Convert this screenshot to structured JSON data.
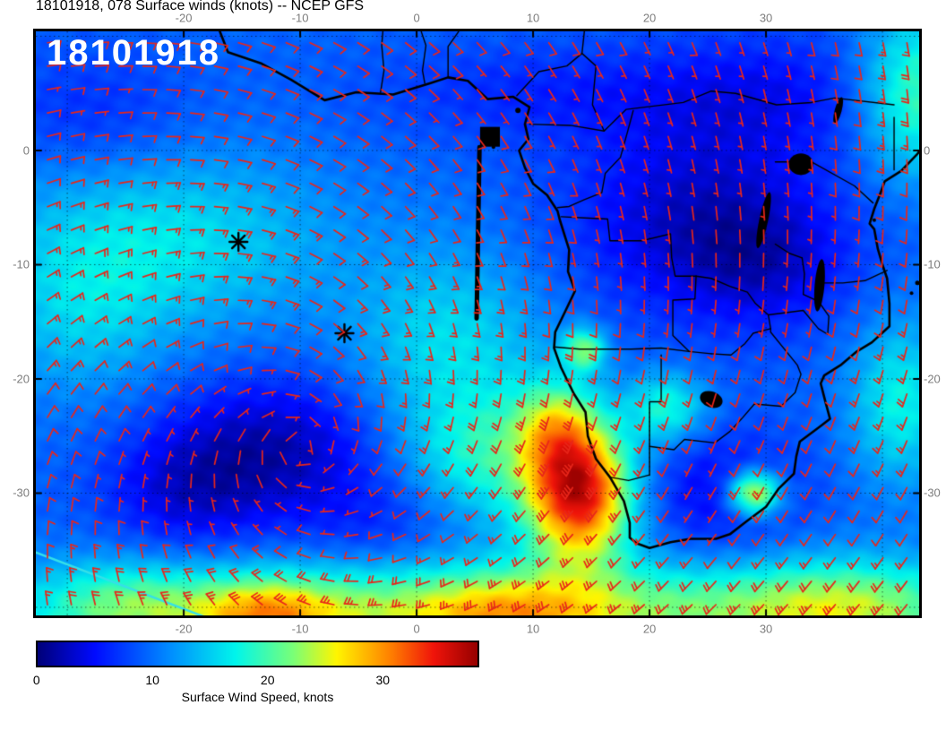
{
  "title": "18101918, 078 Surface winds (knots) -- NCEP GFS",
  "map": {
    "run_label": "18101918"
  },
  "axes": {
    "lon_ticks": [
      -20,
      -10,
      0,
      10,
      20,
      30
    ],
    "lon_labels": [
      "-20",
      "-10",
      "0",
      "10",
      "20",
      "30"
    ],
    "lat_ticks": [
      0,
      -10,
      -20,
      -30
    ],
    "lat_labels": [
      "0",
      "-10",
      "-20",
      "-30"
    ]
  },
  "chart_data": {
    "type": "heatmap",
    "description": "Surface wind speed (knots, shaded) with red wind barbs, NCEP GFS forecast hour 078, South Atlantic and southern Africa",
    "extent": {
      "lon_min": -32.7,
      "lon_max": 43.15,
      "lat_min": -40.71,
      "lat_max": 10.43
    },
    "graticule": {
      "lons": [
        -30,
        -20,
        -10,
        0,
        10,
        20,
        30,
        40
      ],
      "lats": [
        10,
        0,
        -10,
        -20,
        -30,
        -40
      ]
    },
    "frame_color": "#000000",
    "tick_label_color": "#7d7d7d",
    "colorbar": {
      "label": "Surface Wind Speed, knots",
      "ticks": [
        0,
        10,
        20,
        30
      ],
      "tick_labels": [
        "0",
        "10",
        "20",
        "30"
      ],
      "vmin": 0,
      "vmax": 38.5,
      "stops": [
        {
          "pos": 0.0,
          "rgb": [
            0,
            0,
            120
          ]
        },
        {
          "pos": 0.13,
          "rgb": [
            0,
            10,
            255
          ]
        },
        {
          "pos": 0.3,
          "rgb": [
            0,
            140,
            255
          ]
        },
        {
          "pos": 0.45,
          "rgb": [
            0,
            245,
            235
          ]
        },
        {
          "pos": 0.58,
          "rgb": [
            120,
            255,
            120
          ]
        },
        {
          "pos": 0.68,
          "rgb": [
            255,
            245,
            0
          ]
        },
        {
          "pos": 0.8,
          "rgb": [
            255,
            130,
            0
          ]
        },
        {
          "pos": 0.9,
          "rgb": [
            240,
            20,
            10
          ]
        },
        {
          "pos": 1.0,
          "rgb": [
            150,
            0,
            0
          ]
        }
      ]
    },
    "wind_field": {
      "background": 9.5,
      "noise": 0.7,
      "blob_format": "[lon,lat,sigma_lon,sigma_lat,amplitude_knots]",
      "blobs": [
        [
          -22,
          -8,
          10,
          5.5,
          7
        ],
        [
          -29,
          -15,
          5,
          5,
          4
        ],
        [
          -28,
          3,
          6,
          4,
          -3
        ],
        [
          -12,
          -26,
          6.5,
          4.5,
          -7
        ],
        [
          -20,
          -30,
          5,
          4,
          -5
        ],
        [
          -3,
          -33,
          5,
          3.5,
          -3
        ],
        [
          3,
          -17,
          6,
          6,
          6.5
        ],
        [
          6,
          -27,
          5,
          4,
          8
        ],
        [
          14,
          -30,
          3.2,
          4.2,
          26
        ],
        [
          12,
          -24,
          2.5,
          2.8,
          9
        ],
        [
          5,
          -40.5,
          26,
          3.2,
          15
        ],
        [
          -25,
          -40,
          5,
          2.8,
          6
        ],
        [
          -13,
          -40.8,
          4,
          2.2,
          10
        ],
        [
          8,
          -41,
          5,
          2.5,
          6
        ],
        [
          37,
          -40,
          7,
          3,
          9
        ],
        [
          21.5,
          -22.5,
          2.4,
          2.2,
          9
        ],
        [
          14.4,
          -17.4,
          1.3,
          1.3,
          12
        ],
        [
          29,
          -30,
          1.6,
          1.4,
          18
        ],
        [
          24,
          -6,
          8,
          6,
          -6.5
        ],
        [
          30,
          -10,
          5,
          4,
          -4
        ],
        [
          26,
          -30,
          5,
          4,
          -5
        ],
        [
          41.5,
          -22,
          3,
          5,
          8
        ],
        [
          43,
          5,
          3.5,
          5,
          11
        ],
        [
          10,
          5,
          10,
          3,
          -3
        ],
        [
          30,
          5,
          8,
          4,
          -4
        ]
      ]
    },
    "barbs": {
      "color": "#e8261a",
      "step_deg": 2.05,
      "margin_deg": 1.0,
      "circulation_center": [
        -10,
        -26
      ],
      "outflow": 0.45
    },
    "coastlines": [
      [
        [
          -16.9,
          10.43
        ],
        [
          -16.2,
          8.6
        ],
        [
          -13.3,
          7.6
        ],
        [
          -10.8,
          6.2
        ],
        [
          -7.9,
          4.4
        ],
        [
          -5.2,
          5.1
        ],
        [
          -2.0,
          4.9
        ],
        [
          1.2,
          5.9
        ],
        [
          2.7,
          6.4
        ],
        [
          4.4,
          6.1
        ],
        [
          6.1,
          4.5
        ],
        [
          8.3,
          4.7
        ],
        [
          9.7,
          3.8
        ],
        [
          9.3,
          2.3
        ],
        [
          9.6,
          1.0
        ],
        [
          8.8,
          0.0
        ],
        [
          9.3,
          -1.5
        ],
        [
          10.0,
          -2.9
        ],
        [
          11.2,
          -3.9
        ],
        [
          12.1,
          -5.3
        ],
        [
          12.3,
          -6.1
        ],
        [
          13.1,
          -8.7
        ],
        [
          13.0,
          -10.6
        ],
        [
          13.6,
          -12.3
        ],
        [
          12.8,
          -14.0
        ],
        [
          11.9,
          -15.9
        ],
        [
          11.8,
          -17.3
        ],
        [
          12.4,
          -19.0
        ],
        [
          13.5,
          -21.3
        ],
        [
          14.5,
          -22.9
        ],
        [
          14.7,
          -25.0
        ],
        [
          15.4,
          -27.0
        ],
        [
          16.6,
          -28.6
        ],
        [
          17.8,
          -30.7
        ],
        [
          18.3,
          -32.6
        ],
        [
          18.3,
          -33.9
        ],
        [
          18.9,
          -34.4
        ],
        [
          20.0,
          -34.8
        ],
        [
          21.8,
          -34.3
        ],
        [
          23.5,
          -34.0
        ],
        [
          25.7,
          -34.0
        ],
        [
          26.9,
          -33.6
        ],
        [
          28.3,
          -32.5
        ],
        [
          30.0,
          -31.2
        ],
        [
          31.1,
          -29.6
        ],
        [
          32.4,
          -28.3
        ],
        [
          32.6,
          -26.8
        ],
        [
          32.9,
          -25.5
        ],
        [
          34.6,
          -24.2
        ],
        [
          35.5,
          -23.5
        ],
        [
          35.1,
          -22.0
        ],
        [
          34.7,
          -20.4
        ],
        [
          35.0,
          -19.7
        ],
        [
          36.4,
          -18.8
        ],
        [
          37.8,
          -17.6
        ],
        [
          39.1,
          -16.8
        ],
        [
          40.6,
          -15.4
        ],
        [
          40.6,
          -13.4
        ],
        [
          40.4,
          -11.2
        ],
        [
          40.0,
          -10.0
        ],
        [
          39.6,
          -8.6
        ],
        [
          39.3,
          -6.9
        ],
        [
          38.9,
          -6.4
        ],
        [
          39.3,
          -5.1
        ],
        [
          39.8,
          -3.8
        ],
        [
          40.2,
          -2.7
        ],
        [
          41.6,
          -1.8
        ],
        [
          43.0,
          -0.3
        ],
        [
          43.4,
          0.2
        ]
      ]
    ],
    "borders": [
      [
        [
          12.4,
          -5.8
        ],
        [
          14.4,
          -5.9
        ],
        [
          16.4,
          -6.0
        ],
        [
          16.6,
          -7.9
        ],
        [
          19.4,
          -7.9
        ],
        [
          21.8,
          -7.3
        ],
        [
          21.9,
          -9.4
        ],
        [
          22.2,
          -11.0
        ],
        [
          24.0,
          -11.0
        ]
      ],
      [
        [
          24.0,
          -11.0
        ],
        [
          23.9,
          -13.0
        ],
        [
          22.0,
          -13.1
        ],
        [
          22.0,
          -16.2
        ],
        [
          23.4,
          -17.6
        ]
      ],
      [
        [
          11.8,
          -17.2
        ],
        [
          14.0,
          -17.4
        ],
        [
          18.4,
          -17.4
        ],
        [
          21.0,
          -17.3
        ],
        [
          23.4,
          -17.6
        ],
        [
          25.3,
          -17.8
        ]
      ],
      [
        [
          21.0,
          -17.9
        ],
        [
          21.0,
          -22.0
        ],
        [
          20.0,
          -22.0
        ],
        [
          20.0,
          -28.4
        ]
      ],
      [
        [
          16.6,
          -28.6
        ],
        [
          18.2,
          -28.9
        ],
        [
          20.0,
          -28.4
        ]
      ],
      [
        [
          20.0,
          -25.9
        ],
        [
          22.1,
          -26.2
        ],
        [
          23.0,
          -25.3
        ],
        [
          25.6,
          -25.6
        ],
        [
          26.9,
          -24.6
        ],
        [
          27.9,
          -23.5
        ],
        [
          29.0,
          -22.2
        ],
        [
          31.3,
          -22.4
        ]
      ],
      [
        [
          25.3,
          -17.8
        ],
        [
          27.0,
          -17.9
        ],
        [
          28.2,
          -16.9
        ],
        [
          28.9,
          -16.0
        ],
        [
          30.4,
          -15.6
        ]
      ],
      [
        [
          31.3,
          -22.4
        ],
        [
          32.5,
          -21.2
        ],
        [
          33.0,
          -19.6
        ],
        [
          32.7,
          -18.8
        ],
        [
          30.4,
          -15.9
        ],
        [
          30.4,
          -15.6
        ]
      ],
      [
        [
          30.4,
          -15.6
        ],
        [
          30.2,
          -14.4
        ],
        [
          33.2,
          -14.0
        ],
        [
          34.5,
          -15.6
        ],
        [
          35.3,
          -16.1
        ],
        [
          35.4,
          -14.5
        ],
        [
          34.5,
          -13.2
        ],
        [
          33.2,
          -12.6
        ],
        [
          33.3,
          -10.8
        ],
        [
          33.1,
          -9.4
        ]
      ],
      [
        [
          24.0,
          -11.0
        ],
        [
          25.3,
          -11.2
        ],
        [
          26.9,
          -11.9
        ],
        [
          28.4,
          -12.4
        ],
        [
          29.1,
          -13.4
        ],
        [
          30.2,
          -14.4
        ]
      ],
      [
        [
          30.8,
          -1.0
        ],
        [
          33.9,
          -1.0
        ],
        [
          37.6,
          -3.1
        ],
        [
          39.2,
          -4.6
        ]
      ],
      [
        [
          9.7,
          2.3
        ],
        [
          13.2,
          2.2
        ],
        [
          16.1,
          1.7
        ],
        [
          18.0,
          3.6
        ],
        [
          22.9,
          4.2
        ],
        [
          25.3,
          5.2
        ],
        [
          27.4,
          5.0
        ],
        [
          30.9,
          4.0
        ],
        [
          33.9,
          4.2
        ],
        [
          35.9,
          4.6
        ],
        [
          41.0,
          4.0
        ]
      ],
      [
        [
          14.4,
          10.4
        ],
        [
          14.2,
          8.5
        ],
        [
          15.4,
          7.4
        ],
        [
          15.1,
          4.0
        ],
        [
          16.1,
          1.7
        ]
      ],
      [
        [
          -3.1,
          5.1
        ],
        [
          -2.8,
          7.0
        ],
        [
          -3.0,
          9.2
        ],
        [
          -2.9,
          10.4
        ]
      ],
      [
        [
          0.7,
          5.9
        ],
        [
          0.5,
          7.0
        ],
        [
          0.8,
          9.2
        ],
        [
          0.4,
          10.4
        ]
      ],
      [
        [
          2.7,
          6.4
        ],
        [
          2.7,
          9.1
        ],
        [
          3.6,
          10.4
        ]
      ],
      [
        [
          8.6,
          4.8
        ],
        [
          10.5,
          6.9
        ],
        [
          12.9,
          7.4
        ],
        [
          14.2,
          8.5
        ]
      ],
      [
        [
          12.1,
          -5.0
        ],
        [
          13.1,
          -4.9
        ],
        [
          14.4,
          -4.3
        ],
        [
          15.9,
          -3.7
        ],
        [
          16.2,
          -2.0
        ],
        [
          17.5,
          -0.6
        ],
        [
          18.1,
          1.6
        ],
        [
          18.6,
          3.5
        ]
      ],
      [
        [
          40.4,
          -10.5
        ],
        [
          38.5,
          -11.4
        ],
        [
          36.6,
          -11.6
        ],
        [
          34.5,
          -11.6
        ]
      ],
      [
        [
          41.0,
          -1.7
        ],
        [
          41.0,
          2.9
        ]
      ],
      [
        [
          33.1,
          -9.4
        ],
        [
          32.0,
          -9.0
        ],
        [
          30.8,
          -8.2
        ]
      ]
    ],
    "lakes": [
      {
        "lon": 33.0,
        "lat": -1.2,
        "rx": 1.05,
        "ry": 0.95,
        "rot": 0
      },
      {
        "lon": 29.8,
        "lat": -6.1,
        "rx": 0.38,
        "ry": 2.5,
        "rot": 12
      },
      {
        "lon": 34.6,
        "lat": -11.8,
        "rx": 0.42,
        "ry": 2.3,
        "rot": 5
      },
      {
        "lon": 36.2,
        "lat": 3.5,
        "rx": 0.3,
        "ry": 1.2,
        "rot": 15
      },
      {
        "lon": 25.3,
        "lat": -21.8,
        "rx": 1.0,
        "ry": 0.7,
        "rot": 20
      }
    ],
    "islands": [
      {
        "lon": 8.7,
        "lat": 3.5,
        "r": 3
      },
      {
        "lon": 6.6,
        "lat": 0.3,
        "r": 2
      },
      {
        "lon": 39.3,
        "lat": -6.1,
        "r": 2
      },
      {
        "lon": 43.0,
        "lat": -11.6,
        "r": 2.5
      },
      {
        "lon": 42.5,
        "lat": -12.5,
        "r": 2
      }
    ],
    "station_markers": [
      {
        "lon": -15.3,
        "lat": -8.0
      },
      {
        "lon": -6.2,
        "lat": -16.0
      }
    ],
    "annotations": {
      "section_line": {
        "from": [
          5.4,
          0.3
        ],
        "to": [
          5.15,
          -14.7
        ],
        "width": 5,
        "color": "#000000"
      },
      "section_square": {
        "lon": 6.3,
        "lat": 1.2,
        "size_deg": 1.7,
        "color": "#000000"
      },
      "track_line": {
        "from": [
          -32.7,
          -35.2
        ],
        "to": [
          -16.5,
          -41.5
        ],
        "width": 2.5,
        "color": "#35e0e8"
      }
    }
  }
}
